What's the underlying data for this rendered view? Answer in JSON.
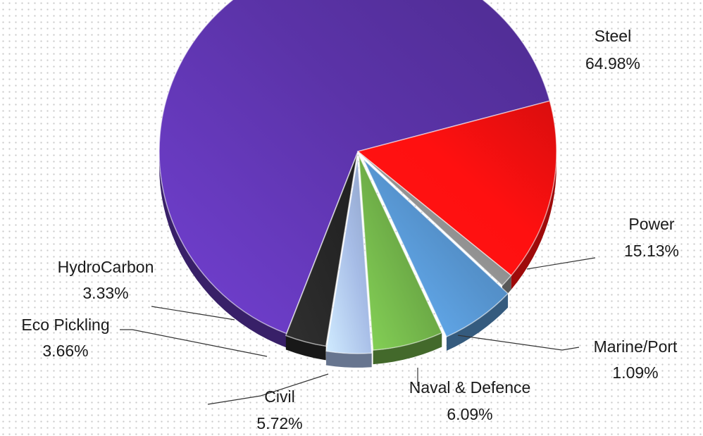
{
  "chart_data": {
    "type": "pie",
    "title": "",
    "slices": [
      {
        "label": "Steel",
        "value": 64.98,
        "value_label": "64.98%",
        "color": "#5b33a8"
      },
      {
        "label": "Power",
        "value": 15.13,
        "value_label": "15.13%",
        "color": "#ff1010"
      },
      {
        "label": "Marine/Port",
        "value": 1.09,
        "value_label": "1.09%",
        "color": "#8f8f8f"
      },
      {
        "label": "Naval & Defence",
        "value": 6.09,
        "value_label": "6.09%",
        "color": "#5592cc"
      },
      {
        "label": "Civil",
        "value": 5.72,
        "value_label": "5.72%",
        "color": "#6caa46"
      },
      {
        "label": "Eco Pickling",
        "value": 3.66,
        "value_label": "3.66%",
        "color": "#a6bce6"
      },
      {
        "label": "HydroCarbon",
        "value": 3.33,
        "value_label": "3.33%",
        "color": "#262626"
      }
    ],
    "legend": "none",
    "labels_style": "category-and-percent-outside-with-leader-lines"
  }
}
